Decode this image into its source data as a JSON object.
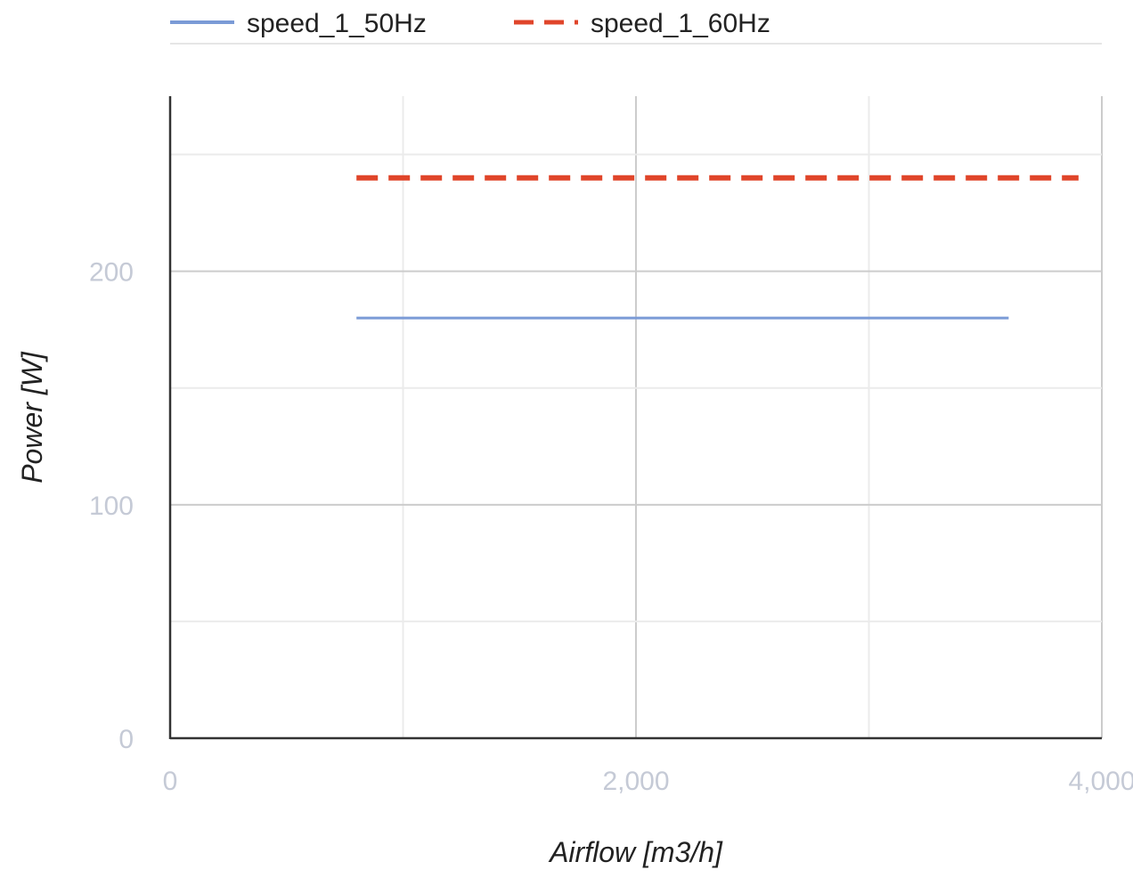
{
  "chart_data": {
    "type": "line",
    "title": "",
    "xlabel": "Airflow [m3/h]",
    "ylabel": "Power [W]",
    "xlim": [
      0,
      4000
    ],
    "ylim": [
      0,
      275
    ],
    "x_ticks": [
      0,
      2000,
      4000
    ],
    "x_tick_labels": [
      "0",
      "2,000",
      "4,000"
    ],
    "x_minor_gridlines": [
      1000,
      3000
    ],
    "y_ticks": [
      0,
      100,
      200
    ],
    "y_tick_labels": [
      "0",
      "100",
      "200"
    ],
    "y_minor_gridlines": [
      50,
      150,
      250
    ],
    "grid": true,
    "legend_position": "top",
    "series": [
      {
        "name": "speed_1_50Hz",
        "color": "#7b9bd6",
        "style": "solid",
        "x": [
          800,
          3600
        ],
        "y": [
          180,
          180
        ]
      },
      {
        "name": "speed_1_60Hz",
        "color": "#e0452a",
        "style": "dashed",
        "x": [
          800,
          3900
        ],
        "y": [
          240,
          240
        ]
      }
    ]
  }
}
